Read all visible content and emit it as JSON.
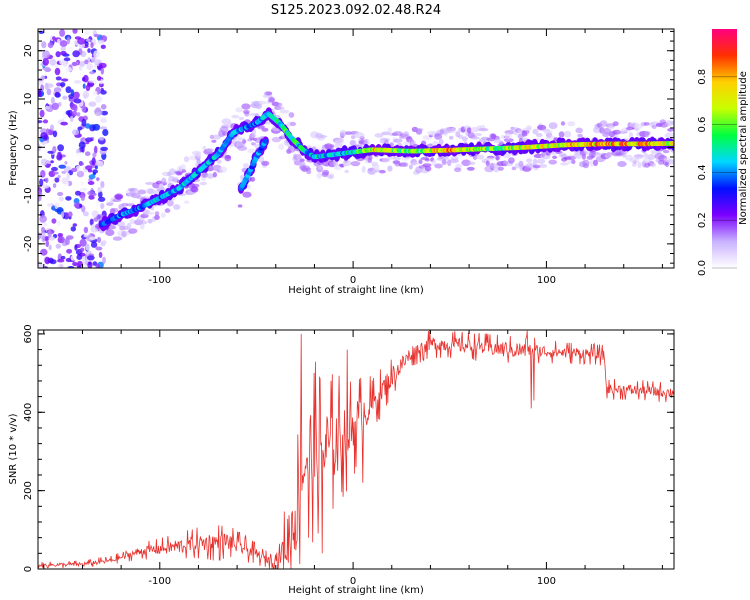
{
  "figure_title": "S125.2023.092.02.48.R24",
  "colors": {
    "snr_line": "#e8322e",
    "axis": "#000000",
    "background": "#ffffff"
  },
  "chart_data": [
    {
      "type": "heatmap",
      "xlabel": "Height of straight line (km)",
      "ylabel": "Frequency (Hz)",
      "xlim": [
        -163,
        166
      ],
      "ylim": [
        -25,
        24.5
      ],
      "x_ticks": [
        -100,
        0,
        100
      ],
      "y_ticks": [
        -20,
        -10,
        0,
        10,
        20
      ],
      "colorbar": {
        "label": "Normalized spectral amplitude",
        "range": [
          0,
          1
        ],
        "ticks": [
          "0.0",
          "0.2",
          "0.4",
          "0.6",
          "0.8"
        ],
        "stops": [
          "#ffffff",
          "#c9b2ff",
          "#7a00ff",
          "#0010ff",
          "#00d8ff",
          "#00ff40",
          "#c8ff00",
          "#ffd000",
          "#ff3000",
          "#ff0080"
        ]
      },
      "ridge": [
        {
          "x": -130,
          "y": -16,
          "amp": 0.35
        },
        {
          "x": -120,
          "y": -14,
          "amp": 0.4
        },
        {
          "x": -110,
          "y": -12.5,
          "amp": 0.4
        },
        {
          "x": -100,
          "y": -10.5,
          "amp": 0.45
        },
        {
          "x": -90,
          "y": -8.5,
          "amp": 0.45
        },
        {
          "x": -80,
          "y": -5,
          "amp": 0.45
        },
        {
          "x": -70,
          "y": -1.5,
          "amp": 0.45
        },
        {
          "x": -62,
          "y": 3,
          "amp": 0.4
        },
        {
          "x": -50,
          "y": 5,
          "amp": 0.4
        },
        {
          "x": -44,
          "y": 7,
          "amp": 0.45
        },
        {
          "x": -38,
          "y": 5,
          "amp": 0.5
        },
        {
          "x": -32,
          "y": 2,
          "amp": 0.55
        },
        {
          "x": -26,
          "y": -0.5,
          "amp": 0.5
        },
        {
          "x": -20,
          "y": -2,
          "amp": 0.45
        },
        {
          "x": -10,
          "y": -1.5,
          "amp": 0.45
        },
        {
          "x": 0,
          "y": -1,
          "amp": 0.5
        },
        {
          "x": 10,
          "y": -0.5,
          "amp": 0.75
        },
        {
          "x": 30,
          "y": -0.8,
          "amp": 0.6
        },
        {
          "x": 50,
          "y": -0.6,
          "amp": 0.8
        },
        {
          "x": 70,
          "y": -0.3,
          "amp": 0.6
        },
        {
          "x": 90,
          "y": 0,
          "amp": 0.7
        },
        {
          "x": 110,
          "y": 0.5,
          "amp": 0.75
        },
        {
          "x": 130,
          "y": 0.7,
          "amp": 0.8
        },
        {
          "x": 150,
          "y": 0.7,
          "amp": 0.8
        },
        {
          "x": 166,
          "y": 0.8,
          "amp": 0.7
        }
      ],
      "secondary_ridge": [
        {
          "x": -58,
          "y": -8.5,
          "amp": 0.4
        },
        {
          "x": -54,
          "y": -5.5,
          "amp": 0.4
        },
        {
          "x": -50,
          "y": -2,
          "amp": 0.4
        },
        {
          "x": -45,
          "y": 1.5,
          "amp": 0.4
        }
      ],
      "noise_region": {
        "x_range": [
          -163,
          -128
        ],
        "y_range": [
          -25,
          24.5
        ],
        "amp": 0.15
      }
    },
    {
      "type": "line",
      "xlabel": "Height of straight line (km)",
      "ylabel": "SNR (10 * v/v)",
      "xlim": [
        -163,
        166
      ],
      "ylim": [
        0,
        610
      ],
      "x_ticks": [
        -100,
        0,
        100
      ],
      "y_ticks": [
        0,
        200,
        400,
        600
      ],
      "trend": [
        {
          "x": -163,
          "y": 10
        },
        {
          "x": -140,
          "y": 12
        },
        {
          "x": -125,
          "y": 22
        },
        {
          "x": -110,
          "y": 45
        },
        {
          "x": -95,
          "y": 55
        },
        {
          "x": -80,
          "y": 65
        },
        {
          "x": -65,
          "y": 70
        },
        {
          "x": -55,
          "y": 50
        },
        {
          "x": -45,
          "y": 25
        },
        {
          "x": -38,
          "y": 30
        },
        {
          "x": -32,
          "y": 90
        },
        {
          "x": -28,
          "y": 180
        },
        {
          "x": -25,
          "y": 280
        },
        {
          "x": -20,
          "y": 300
        },
        {
          "x": -15,
          "y": 300
        },
        {
          "x": -10,
          "y": 320
        },
        {
          "x": -5,
          "y": 340
        },
        {
          "x": 0,
          "y": 360
        },
        {
          "x": 5,
          "y": 400
        },
        {
          "x": 10,
          "y": 420
        },
        {
          "x": 20,
          "y": 490
        },
        {
          "x": 30,
          "y": 550
        },
        {
          "x": 40,
          "y": 575
        },
        {
          "x": 60,
          "y": 570
        },
        {
          "x": 80,
          "y": 560
        },
        {
          "x": 100,
          "y": 555
        },
        {
          "x": 120,
          "y": 550
        },
        {
          "x": 130,
          "y": 545
        },
        {
          "x": 131,
          "y": 460
        },
        {
          "x": 150,
          "y": 455
        },
        {
          "x": 166,
          "y": 450
        }
      ],
      "noise": [
        {
          "x": -163,
          "amp": 8
        },
        {
          "x": -120,
          "amp": 15
        },
        {
          "x": -70,
          "amp": 55
        },
        {
          "x": -45,
          "amp": 25
        },
        {
          "x": -38,
          "amp": 40
        },
        {
          "x": -32,
          "amp": 220
        },
        {
          "x": -20,
          "amp": 260
        },
        {
          "x": -5,
          "amp": 180
        },
        {
          "x": 10,
          "amp": 80
        },
        {
          "x": 30,
          "amp": 40
        },
        {
          "x": 60,
          "amp": 40
        },
        {
          "x": 85,
          "amp": 45
        },
        {
          "x": 95,
          "amp": 35
        },
        {
          "x": 130,
          "amp": 30
        },
        {
          "x": 166,
          "amp": 30
        }
      ],
      "dips": [
        {
          "x": -23,
          "y": 80
        },
        {
          "x": -16,
          "y": 40
        },
        {
          "x": 5,
          "y": 220
        },
        {
          "x": 92,
          "y": 410
        },
        {
          "x": 93.5,
          "y": 430
        }
      ],
      "peaks": [
        {
          "x": -27,
          "y": 600
        },
        {
          "x": -3,
          "y": 560
        },
        {
          "x": 90,
          "y": 608
        },
        {
          "x": 94,
          "y": 590
        }
      ]
    }
  ]
}
